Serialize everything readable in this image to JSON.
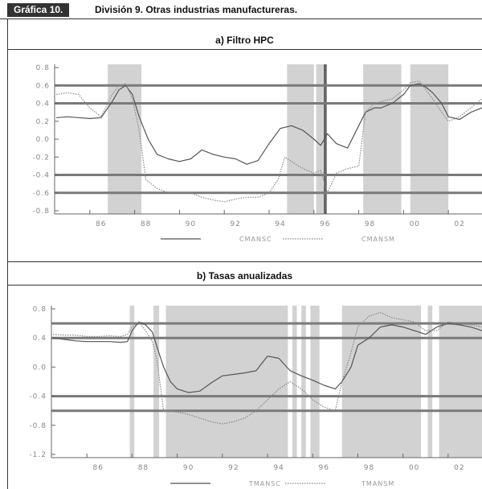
{
  "header": {
    "badge": "Gráfica 10.",
    "title": "División 9. Otras industrias manufactureras."
  },
  "chart_data": [
    {
      "type": "line",
      "title": "a) Filtro HPC",
      "x_ticks": [
        "86",
        "88",
        "90",
        "92",
        "94",
        "96",
        "98",
        "00",
        "02"
      ],
      "y_ticks": [
        "0.8",
        "0.6",
        "0.4",
        "0.2",
        "0.0",
        "-0.2",
        "-0.4",
        "-0.6",
        "-0.8"
      ],
      "ylim": [
        -0.8,
        0.8
      ],
      "xlim": [
        1984.5,
        2003.5
      ],
      "reference_lines": [
        0.6,
        0.4,
        -0.4,
        -0.6
      ],
      "shaded_ranges": [
        [
          1986.8,
          1988.3
        ],
        [
          1994.8,
          1996.0
        ],
        [
          1996.1,
          1996.4
        ],
        [
          1998.2,
          1999.9
        ],
        [
          2000.3,
          2002.0
        ]
      ],
      "vertical_lines": [
        1996.5
      ],
      "series": [
        {
          "name": "CMANSC",
          "style": "solid",
          "color": "#555555",
          "x": [
            1984.5,
            1985,
            1985.5,
            1986,
            1986.5,
            1987,
            1987.3,
            1987.6,
            1987.9,
            1988.2,
            1988.6,
            1989,
            1989.5,
            1990,
            1990.5,
            1991,
            1991.5,
            1992,
            1992.5,
            1993,
            1993.5,
            1994,
            1994.5,
            1995,
            1995.5,
            1996,
            1996.3,
            1996.6,
            1997,
            1997.5,
            1998,
            1998.3,
            1998.7,
            1999,
            1999.5,
            2000,
            2000.3,
            2000.7,
            2001,
            2001.3,
            2001.7,
            2002,
            2002.5,
            2003,
            2003.5
          ],
          "y": [
            0.24,
            0.25,
            0.24,
            0.23,
            0.24,
            0.42,
            0.55,
            0.6,
            0.5,
            0.25,
            0.0,
            -0.17,
            -0.22,
            -0.25,
            -0.22,
            -0.12,
            -0.17,
            -0.2,
            -0.22,
            -0.28,
            -0.24,
            -0.05,
            0.12,
            0.15,
            0.1,
            0.0,
            -0.07,
            0.06,
            -0.05,
            -0.1,
            0.15,
            0.3,
            0.35,
            0.35,
            0.4,
            0.5,
            0.6,
            0.62,
            0.58,
            0.52,
            0.4,
            0.25,
            0.22,
            0.3,
            0.35
          ]
        },
        {
          "name": "CMANSM",
          "style": "dotted",
          "color": "#888888",
          "x": [
            1984.5,
            1985,
            1985.5,
            1986,
            1986.5,
            1987,
            1987.3,
            1987.6,
            1987.9,
            1988.2,
            1988.5,
            1989,
            1989.5,
            1990,
            1990.5,
            1991,
            1991.5,
            1992,
            1992.5,
            1993,
            1993.5,
            1994,
            1994.4,
            1994.7,
            1995,
            1995.3,
            1995.7,
            1996,
            1996.3,
            1996.6,
            1997,
            1997.5,
            1998,
            1998.3,
            1998.7,
            1999,
            1999.5,
            2000,
            2000.3,
            2000.7,
            2001,
            2001.3,
            2001.7,
            2002,
            2002.5,
            2003,
            2003.5
          ],
          "y": [
            0.5,
            0.52,
            0.5,
            0.35,
            0.25,
            0.5,
            0.6,
            0.62,
            0.45,
            0.1,
            -0.45,
            -0.55,
            -0.6,
            -0.6,
            -0.6,
            -0.65,
            -0.68,
            -0.7,
            -0.67,
            -0.65,
            -0.65,
            -0.6,
            -0.45,
            -0.2,
            -0.25,
            -0.3,
            -0.35,
            -0.38,
            -0.35,
            -0.6,
            -0.38,
            -0.33,
            -0.3,
            0.3,
            0.4,
            0.42,
            0.45,
            0.55,
            0.63,
            0.65,
            0.55,
            0.45,
            0.3,
            0.2,
            0.25,
            0.35,
            0.45
          ]
        }
      ],
      "legend": [
        "CMANSC",
        "CMANSM"
      ]
    },
    {
      "type": "line",
      "title": "b) Tasas anualizadas",
      "x_ticks": [
        "86",
        "88",
        "90",
        "92",
        "94",
        "96",
        "98",
        "00",
        "02"
      ],
      "y_ticks": [
        "0.8",
        "0.4",
        "0.0",
        "-0.4",
        "-0.8",
        "-1.2"
      ],
      "ylim": [
        -1.2,
        0.8
      ],
      "xlim": [
        1984.5,
        2003.5
      ],
      "reference_lines": [
        0.6,
        0.4,
        -0.4,
        -0.6
      ],
      "shaded_ranges": [
        [
          1987.9,
          1988.1
        ],
        [
          1988.95,
          1989.2
        ],
        [
          1989.5,
          1994.9
        ],
        [
          1995.1,
          1995.3
        ],
        [
          1995.5,
          1995.7
        ],
        [
          1995.9,
          1996.3
        ],
        [
          1997.3,
          2000.8
        ],
        [
          2001.1,
          2001.3
        ],
        [
          2001.6,
          2003.5
        ]
      ],
      "vertical_lines": [],
      "series": [
        {
          "name": "TMANSC",
          "style": "solid",
          "color": "#555555",
          "x": [
            1984.5,
            1985,
            1985.5,
            1986,
            1986.5,
            1987,
            1987.5,
            1987.8,
            1988,
            1988.3,
            1988.6,
            1988.9,
            1989.1,
            1989.4,
            1989.7,
            1990,
            1990.5,
            1991,
            1991.5,
            1992,
            1992.5,
            1993,
            1993.5,
            1994,
            1994.5,
            1995,
            1995.5,
            1996,
            1996.5,
            1997,
            1997.3,
            1997.7,
            1998,
            1998.5,
            1999,
            1999.5,
            2000,
            2000.5,
            2001,
            2001.5,
            2002,
            2002.5,
            2003,
            2003.5
          ],
          "y": [
            0.4,
            0.38,
            0.36,
            0.35,
            0.35,
            0.35,
            0.34,
            0.35,
            0.5,
            0.62,
            0.58,
            0.48,
            0.28,
            0.0,
            -0.2,
            -0.3,
            -0.35,
            -0.33,
            -0.22,
            -0.12,
            -0.1,
            -0.08,
            -0.05,
            0.15,
            0.12,
            -0.05,
            -0.12,
            -0.18,
            -0.25,
            -0.3,
            -0.2,
            0.0,
            0.3,
            0.4,
            0.55,
            0.58,
            0.55,
            0.5,
            0.45,
            0.55,
            0.6,
            0.58,
            0.55,
            0.5
          ]
        },
        {
          "name": "TMANSM",
          "style": "dotted",
          "color": "#888888",
          "x": [
            1984.5,
            1985,
            1985.5,
            1986,
            1986.5,
            1987,
            1987.5,
            1987.8,
            1988,
            1988.3,
            1988.6,
            1988.9,
            1989.1,
            1989.4,
            1989.7,
            1990,
            1990.5,
            1991,
            1991.5,
            1992,
            1992.5,
            1993,
            1993.5,
            1994,
            1994.5,
            1995,
            1995.5,
            1996,
            1996.5,
            1997,
            1997.3,
            1997.7,
            1998,
            1998.5,
            1999,
            1999.5,
            2000,
            2000.5,
            2001,
            2001.5,
            2002,
            2002.5,
            2003,
            2003.5
          ],
          "y": [
            0.45,
            0.44,
            0.44,
            0.42,
            0.42,
            0.43,
            0.42,
            0.45,
            0.55,
            0.62,
            0.5,
            0.35,
            0.1,
            -0.6,
            -0.6,
            -0.62,
            -0.65,
            -0.7,
            -0.75,
            -0.78,
            -0.75,
            -0.7,
            -0.6,
            -0.45,
            -0.3,
            -0.2,
            -0.3,
            -0.45,
            -0.55,
            -0.6,
            -0.2,
            0.2,
            0.55,
            0.7,
            0.75,
            0.68,
            0.65,
            0.62,
            0.5,
            0.5,
            0.62,
            0.6,
            0.58,
            0.55
          ]
        }
      ],
      "legend": [
        "TMANSC",
        "TMANSM"
      ]
    }
  ]
}
